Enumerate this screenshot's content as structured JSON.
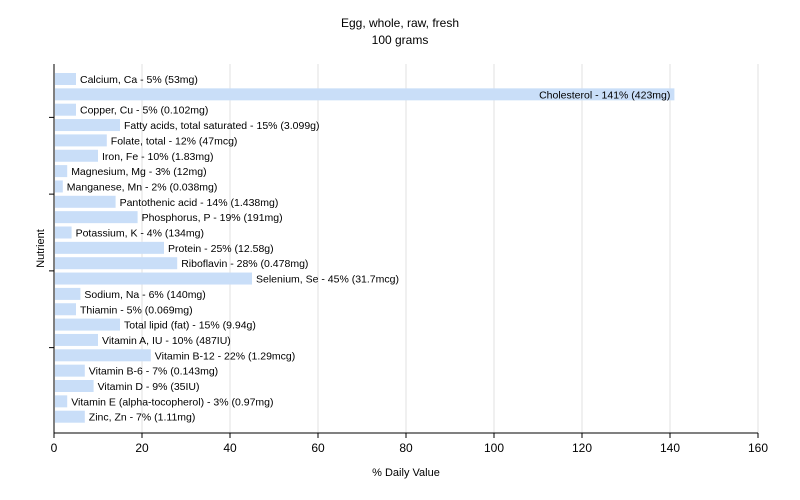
{
  "chart_data": {
    "type": "bar",
    "orientation": "horizontal",
    "title": "Egg, whole, raw, fresh",
    "subtitle": "100 grams",
    "xlabel": "% Daily Value",
    "ylabel": "Nutrient",
    "xlim": [
      0,
      160
    ],
    "xticks": [
      0,
      20,
      40,
      60,
      80,
      100,
      120,
      140,
      160
    ],
    "grid": true,
    "colors": {
      "bar": "#c9def8",
      "grid": "#e2e2e2",
      "axis": "#000000"
    },
    "categories": [
      "Calcium, Ca",
      "Cholesterol",
      "Copper, Cu",
      "Fatty acids, total saturated",
      "Folate, total",
      "Iron, Fe",
      "Magnesium, Mg",
      "Manganese, Mn",
      "Pantothenic acid",
      "Phosphorus, P",
      "Potassium, K",
      "Protein",
      "Riboflavin",
      "Selenium, Se",
      "Sodium, Na",
      "Thiamin",
      "Total lipid (fat)",
      "Vitamin A, IU",
      "Vitamin B-12",
      "Vitamin B-6",
      "Vitamin D",
      "Vitamin E (alpha-tocopherol)",
      "Zinc, Zn"
    ],
    "values": [
      5,
      141,
      5,
      15,
      12,
      10,
      3,
      2,
      14,
      19,
      4,
      25,
      28,
      45,
      6,
      5,
      15,
      10,
      22,
      7,
      9,
      3,
      7
    ],
    "labels": [
      "Calcium, Ca - 5% (53mg)",
      "Cholesterol - 141% (423mg)",
      "Copper, Cu - 5% (0.102mg)",
      "Fatty acids, total saturated - 15% (3.099g)",
      "Folate, total - 12% (47mcg)",
      "Iron, Fe - 10% (1.83mg)",
      "Magnesium, Mg - 3% (12mg)",
      "Manganese, Mn - 2% (0.038mg)",
      "Pantothenic acid - 14% (1.438mg)",
      "Phosphorus, P - 19% (191mg)",
      "Potassium, K - 4% (134mg)",
      "Protein - 25% (12.58g)",
      "Riboflavin - 28% (0.478mg)",
      "Selenium, Se - 45% (31.7mcg)",
      "Sodium, Na - 6% (140mg)",
      "Thiamin - 5% (0.069mg)",
      "Total lipid (fat) - 15% (9.94g)",
      "Vitamin A, IU - 10% (487IU)",
      "Vitamin B-12 - 22% (1.29mcg)",
      "Vitamin B-6 - 7% (0.143mg)",
      "Vitamin D - 9% (35IU)",
      "Vitamin E (alpha-tocopherol) - 3% (0.97mg)",
      "Zinc, Zn - 7% (1.11mg)"
    ]
  }
}
